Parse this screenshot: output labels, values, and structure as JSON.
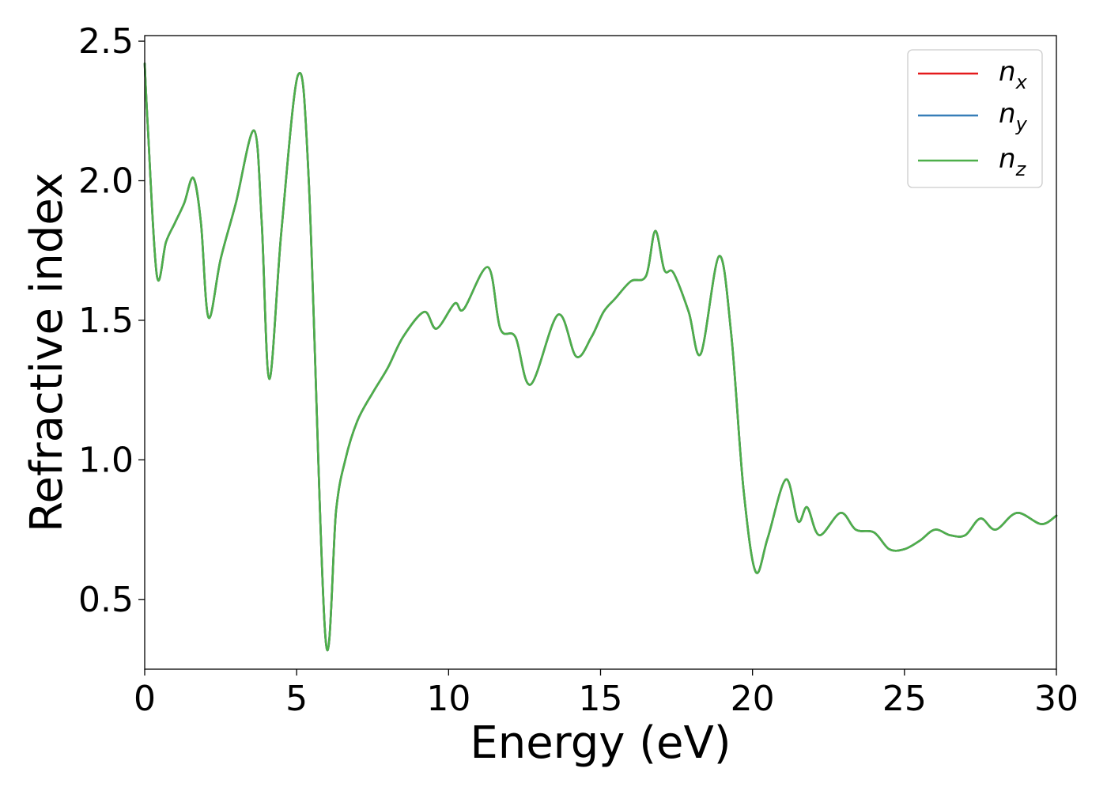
{
  "chart_data": {
    "type": "line",
    "title": "",
    "xlabel": "Energy (eV)",
    "ylabel": "Refractive index",
    "xlim": [
      0,
      30
    ],
    "ylim": [
      0.25,
      2.52
    ],
    "xticks": [
      0,
      5,
      10,
      15,
      20,
      25,
      30
    ],
    "yticks": [
      0.5,
      1.0,
      1.5,
      2.0,
      2.5
    ],
    "xtick_labels": [
      "0",
      "5",
      "10",
      "15",
      "20",
      "25",
      "30"
    ],
    "ytick_labels": [
      "0.5",
      "1.0",
      "1.5",
      "2.0",
      "2.5"
    ],
    "grid": false,
    "legend_position": "top-right",
    "x": [
      0,
      0.1,
      0.4,
      0.7,
      1.0,
      1.3,
      1.6,
      1.85,
      2.1,
      2.5,
      3.0,
      3.6,
      3.85,
      4.1,
      4.5,
      5.05,
      5.4,
      5.95,
      6.3,
      6.6,
      7.0,
      7.5,
      8.0,
      8.5,
      9.2,
      9.6,
      10.2,
      10.5,
      11.3,
      11.7,
      12.2,
      12.7,
      13.6,
      14.2,
      14.7,
      15.1,
      15.5,
      16.0,
      16.5,
      16.8,
      17.1,
      17.4,
      17.9,
      18.3,
      18.9,
      19.3,
      19.7,
      20.1,
      20.5,
      21.1,
      21.5,
      21.8,
      22.2,
      22.9,
      23.4,
      24.0,
      24.5,
      25.0,
      25.5,
      26.0,
      26.5,
      27.0,
      27.5,
      28.0,
      28.7,
      29.5,
      30.0
    ],
    "series": [
      {
        "name": "n",
        "subscript": "x",
        "color": "#e41a1c",
        "values": [
          2.42,
          2.2,
          1.66,
          1.78,
          1.85,
          1.92,
          2.01,
          1.85,
          1.51,
          1.72,
          1.92,
          2.18,
          1.85,
          1.29,
          1.82,
          2.38,
          2.0,
          0.36,
          0.82,
          1.0,
          1.14,
          1.24,
          1.33,
          1.44,
          1.53,
          1.47,
          1.56,
          1.54,
          1.69,
          1.47,
          1.44,
          1.27,
          1.52,
          1.37,
          1.44,
          1.53,
          1.58,
          1.64,
          1.66,
          1.82,
          1.68,
          1.67,
          1.53,
          1.38,
          1.73,
          1.45,
          0.9,
          0.6,
          0.72,
          0.93,
          0.78,
          0.83,
          0.73,
          0.81,
          0.75,
          0.74,
          0.68,
          0.68,
          0.71,
          0.75,
          0.73,
          0.73,
          0.79,
          0.75,
          0.81,
          0.77,
          0.8
        ]
      },
      {
        "name": "n",
        "subscript": "y",
        "color": "#377eb8",
        "values": [
          2.42,
          2.2,
          1.66,
          1.78,
          1.85,
          1.92,
          2.01,
          1.85,
          1.51,
          1.72,
          1.92,
          2.18,
          1.85,
          1.29,
          1.82,
          2.38,
          2.0,
          0.36,
          0.82,
          1.0,
          1.14,
          1.24,
          1.33,
          1.44,
          1.53,
          1.47,
          1.56,
          1.54,
          1.69,
          1.47,
          1.44,
          1.27,
          1.52,
          1.37,
          1.44,
          1.53,
          1.58,
          1.64,
          1.66,
          1.82,
          1.68,
          1.67,
          1.53,
          1.38,
          1.73,
          1.45,
          0.9,
          0.6,
          0.72,
          0.93,
          0.78,
          0.83,
          0.73,
          0.81,
          0.75,
          0.74,
          0.68,
          0.68,
          0.71,
          0.75,
          0.73,
          0.73,
          0.79,
          0.75,
          0.81,
          0.77,
          0.8
        ]
      },
      {
        "name": "n",
        "subscript": "z",
        "color": "#4daf4a",
        "values": [
          2.42,
          2.2,
          1.66,
          1.78,
          1.85,
          1.92,
          2.01,
          1.85,
          1.51,
          1.72,
          1.92,
          2.18,
          1.85,
          1.29,
          1.82,
          2.38,
          2.0,
          0.36,
          0.82,
          1.0,
          1.14,
          1.24,
          1.33,
          1.44,
          1.53,
          1.47,
          1.56,
          1.54,
          1.69,
          1.47,
          1.44,
          1.27,
          1.52,
          1.37,
          1.44,
          1.53,
          1.58,
          1.64,
          1.66,
          1.82,
          1.68,
          1.67,
          1.53,
          1.38,
          1.73,
          1.45,
          0.9,
          0.6,
          0.72,
          0.93,
          0.78,
          0.83,
          0.73,
          0.81,
          0.75,
          0.74,
          0.68,
          0.68,
          0.71,
          0.75,
          0.73,
          0.73,
          0.79,
          0.75,
          0.81,
          0.77,
          0.8
        ]
      }
    ]
  }
}
